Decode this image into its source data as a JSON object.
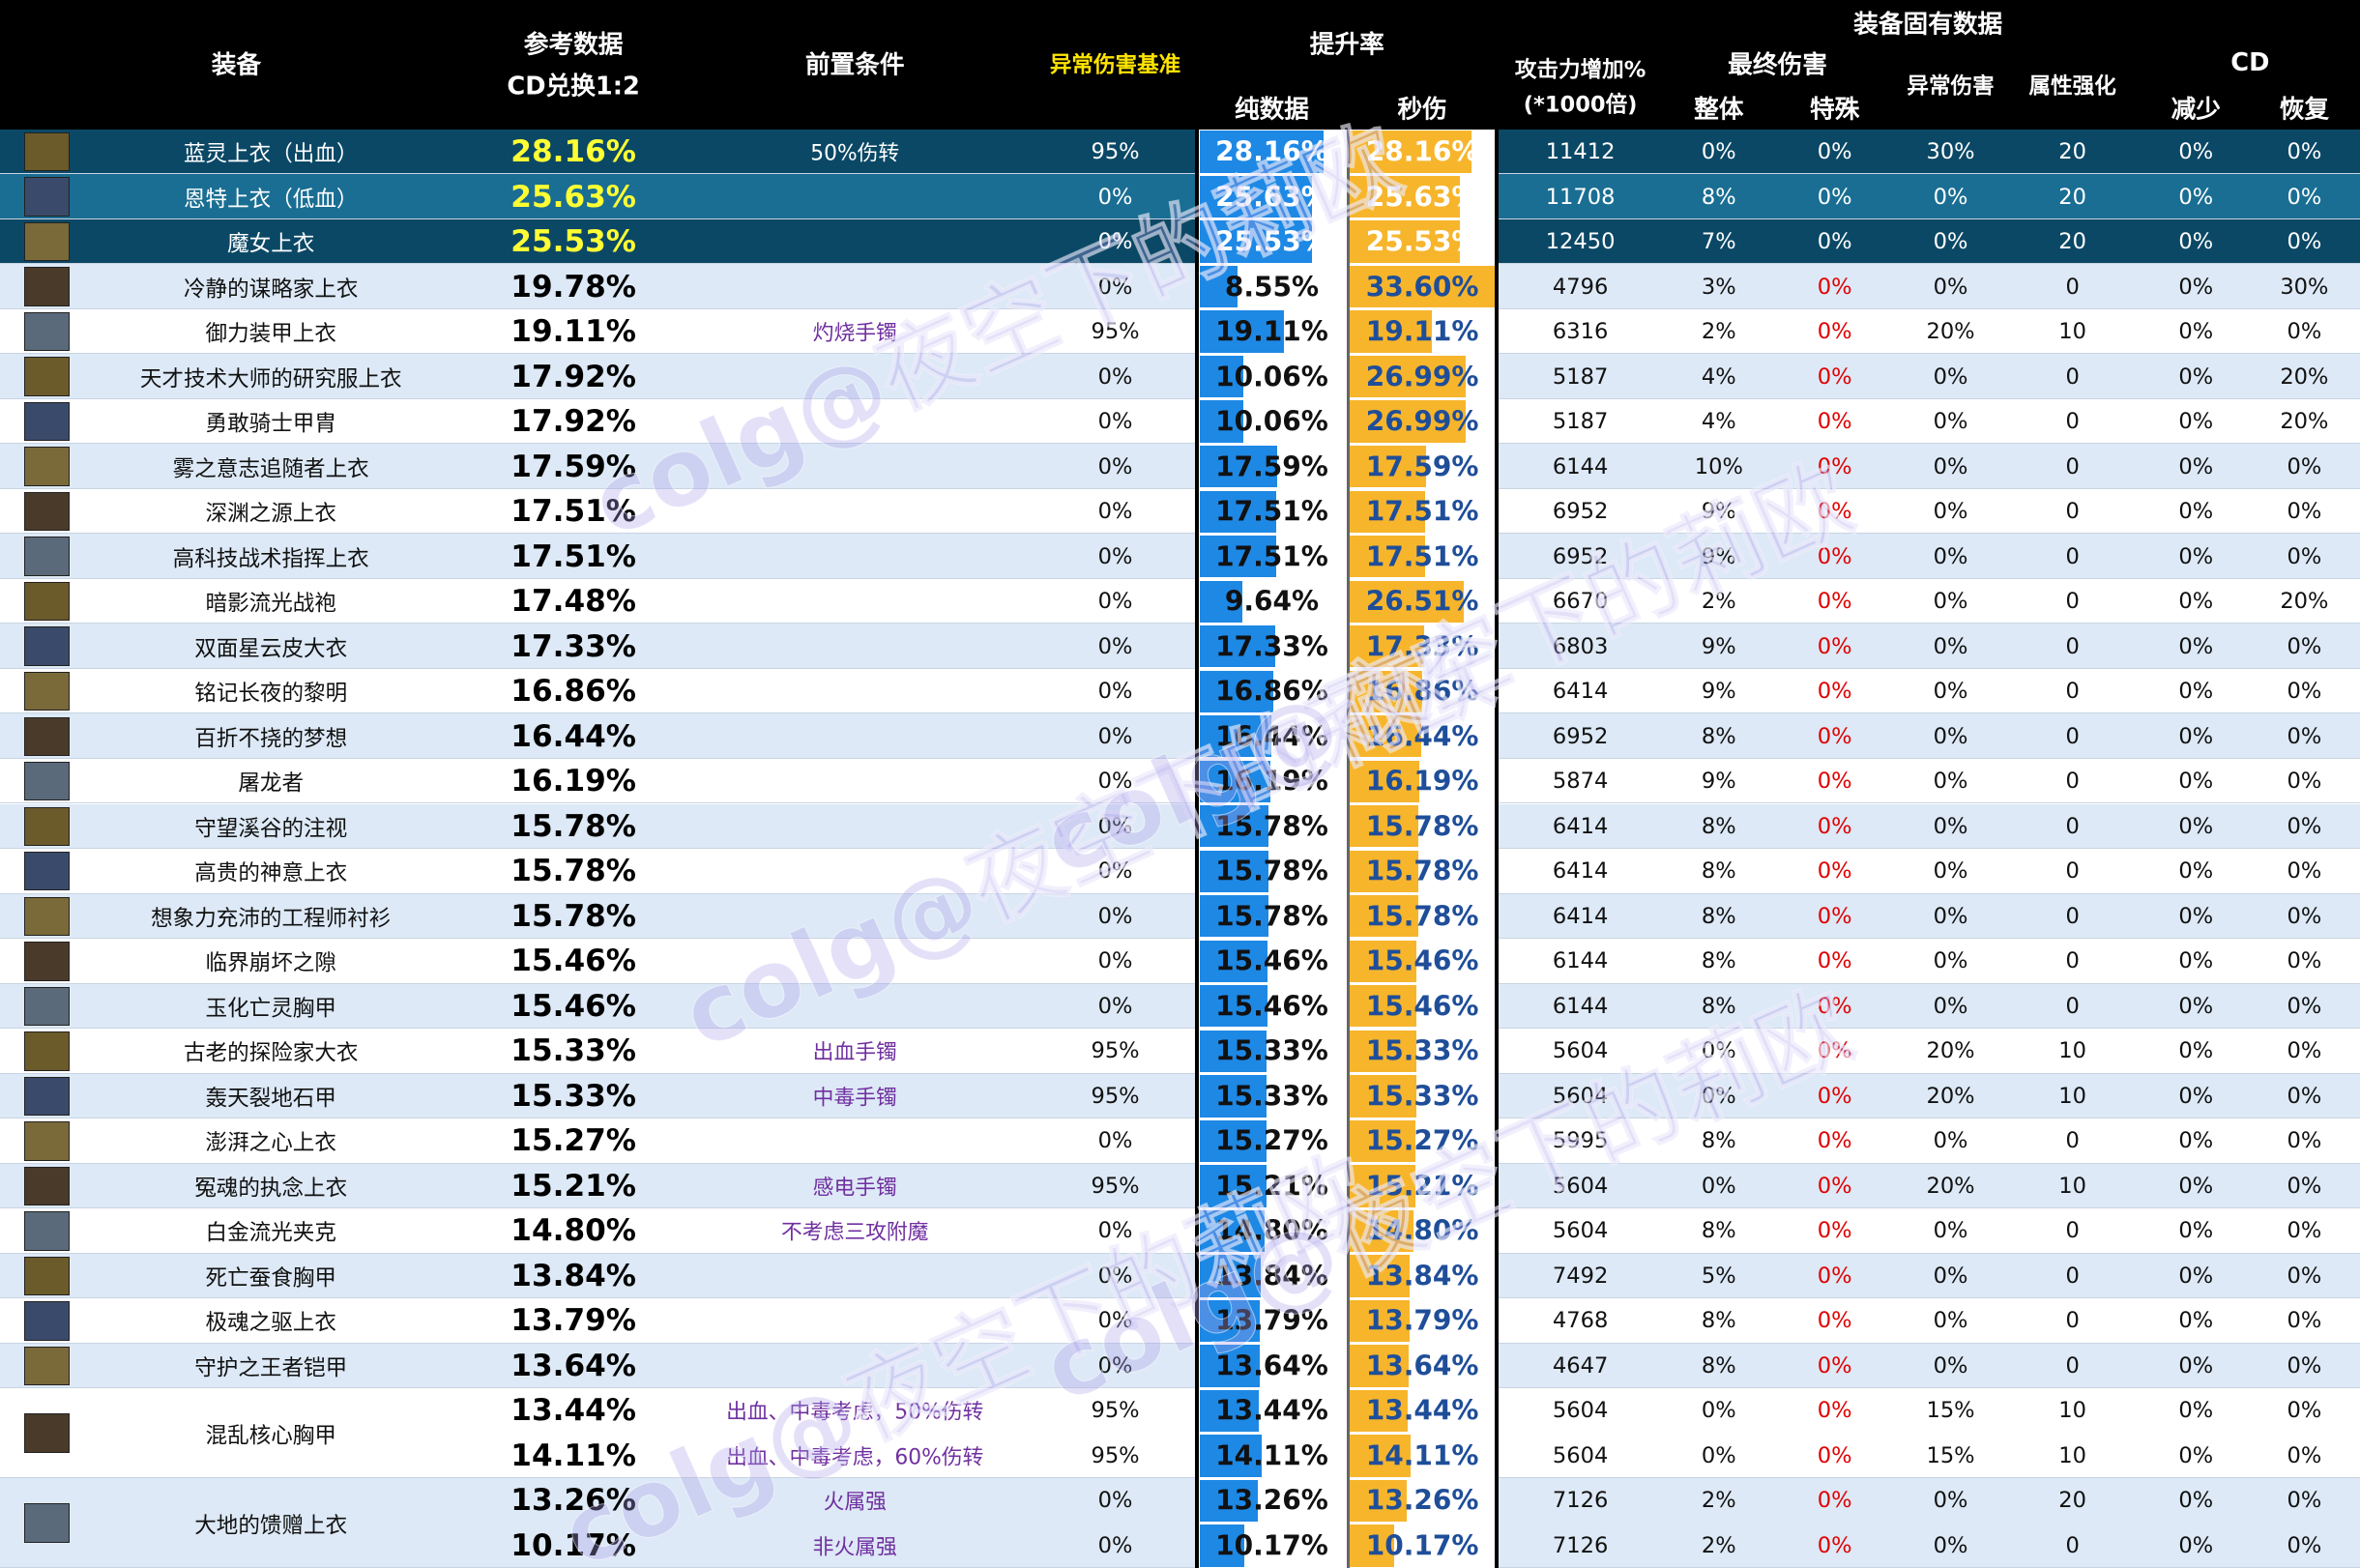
{
  "header": {
    "equip": "装备",
    "ref": [
      "参考数据",
      "CD兑换1:2"
    ],
    "pre": "前置条件",
    "abnormal_base": "异常伤害基准",
    "boost": "提升率",
    "pure": "纯数据",
    "dps": "秒伤",
    "atk": [
      "攻击力增加%",
      "(*1000倍)"
    ],
    "fixed": "装备固有数据",
    "final_dmg": "最终伤害",
    "overall": "整体",
    "special": "特殊",
    "abnormal_dmg": "异常伤害",
    "elem": "属性强化",
    "cd": "CD",
    "cd_reduce": "减少",
    "cd_recover": "恢复"
  },
  "watermark": "colg@夜空下的莉欧",
  "rows": [
    {
      "name": "蓝灵上衣（出血）",
      "entries": [
        [
          "28.16%",
          "50%伤转",
          "95%",
          "28.16%",
          "28.16%",
          "11412",
          "0%",
          "0%",
          "30%",
          "20",
          "0%",
          "0%"
        ]
      ]
    },
    {
      "name": "恩特上衣（低血）",
      "entries": [
        [
          "25.63%",
          "",
          "0%",
          "25.63%",
          "25.63%",
          "11708",
          "8%",
          "0%",
          "0%",
          "20",
          "0%",
          "0%"
        ]
      ]
    },
    {
      "name": "魔女上衣",
      "entries": [
        [
          "25.53%",
          "",
          "0%",
          "25.53%",
          "25.53%",
          "12450",
          "7%",
          "0%",
          "0%",
          "20",
          "0%",
          "0%"
        ]
      ]
    },
    {
      "name": "冷静的谋略家上衣",
      "entries": [
        [
          "19.78%",
          "",
          "0%",
          "8.55%",
          "33.60%",
          "4796",
          "3%",
          "0%",
          "0%",
          "0",
          "0%",
          "30%"
        ]
      ]
    },
    {
      "name": "御力装甲上衣",
      "entries": [
        [
          "19.11%",
          "灼烧手镯",
          "95%",
          "19.11%",
          "19.11%",
          "6316",
          "2%",
          "0%",
          "20%",
          "10",
          "0%",
          "0%"
        ]
      ]
    },
    {
      "name": "天才技术大师的研究服上衣",
      "entries": [
        [
          "17.92%",
          "",
          "0%",
          "10.06%",
          "26.99%",
          "5187",
          "4%",
          "0%",
          "0%",
          "0",
          "0%",
          "20%"
        ]
      ]
    },
    {
      "name": "勇敢骑士甲胄",
      "entries": [
        [
          "17.92%",
          "",
          "0%",
          "10.06%",
          "26.99%",
          "5187",
          "4%",
          "0%",
          "0%",
          "0",
          "0%",
          "20%"
        ]
      ]
    },
    {
      "name": "雾之意志追随者上衣",
      "entries": [
        [
          "17.59%",
          "",
          "0%",
          "17.59%",
          "17.59%",
          "6144",
          "10%",
          "0%",
          "0%",
          "0",
          "0%",
          "0%"
        ]
      ]
    },
    {
      "name": "深渊之源上衣",
      "entries": [
        [
          "17.51%",
          "",
          "0%",
          "17.51%",
          "17.51%",
          "6952",
          "9%",
          "0%",
          "0%",
          "0",
          "0%",
          "0%"
        ]
      ]
    },
    {
      "name": "高科技战术指挥上衣",
      "entries": [
        [
          "17.51%",
          "",
          "0%",
          "17.51%",
          "17.51%",
          "6952",
          "9%",
          "0%",
          "0%",
          "0",
          "0%",
          "0%"
        ]
      ]
    },
    {
      "name": "暗影流光战袍",
      "entries": [
        [
          "17.48%",
          "",
          "0%",
          "9.64%",
          "26.51%",
          "6670",
          "2%",
          "0%",
          "0%",
          "0",
          "0%",
          "20%"
        ]
      ]
    },
    {
      "name": "双面星云皮大衣",
      "entries": [
        [
          "17.33%",
          "",
          "0%",
          "17.33%",
          "17.33%",
          "6803",
          "9%",
          "0%",
          "0%",
          "0",
          "0%",
          "0%"
        ]
      ]
    },
    {
      "name": "铭记长夜的黎明",
      "entries": [
        [
          "16.86%",
          "",
          "0%",
          "16.86%",
          "16.86%",
          "6414",
          "9%",
          "0%",
          "0%",
          "0",
          "0%",
          "0%"
        ]
      ]
    },
    {
      "name": "百折不挠的梦想",
      "entries": [
        [
          "16.44%",
          "",
          "0%",
          "16.44%",
          "16.44%",
          "6952",
          "8%",
          "0%",
          "0%",
          "0",
          "0%",
          "0%"
        ]
      ]
    },
    {
      "name": "屠龙者",
      "entries": [
        [
          "16.19%",
          "",
          "0%",
          "16.19%",
          "16.19%",
          "5874",
          "9%",
          "0%",
          "0%",
          "0",
          "0%",
          "0%"
        ]
      ]
    },
    {
      "name": "守望溪谷的注视",
      "entries": [
        [
          "15.78%",
          "",
          "0%",
          "15.78%",
          "15.78%",
          "6414",
          "8%",
          "0%",
          "0%",
          "0",
          "0%",
          "0%"
        ]
      ]
    },
    {
      "name": "高贵的神意上衣",
      "entries": [
        [
          "15.78%",
          "",
          "0%",
          "15.78%",
          "15.78%",
          "6414",
          "8%",
          "0%",
          "0%",
          "0",
          "0%",
          "0%"
        ]
      ]
    },
    {
      "name": "想象力充沛的工程师衬衫",
      "entries": [
        [
          "15.78%",
          "",
          "0%",
          "15.78%",
          "15.78%",
          "6414",
          "8%",
          "0%",
          "0%",
          "0",
          "0%",
          "0%"
        ]
      ]
    },
    {
      "name": "临界崩坏之隙",
      "entries": [
        [
          "15.46%",
          "",
          "0%",
          "15.46%",
          "15.46%",
          "6144",
          "8%",
          "0%",
          "0%",
          "0",
          "0%",
          "0%"
        ]
      ]
    },
    {
      "name": "玉化亡灵胸甲",
      "entries": [
        [
          "15.46%",
          "",
          "0%",
          "15.46%",
          "15.46%",
          "6144",
          "8%",
          "0%",
          "0%",
          "0",
          "0%",
          "0%"
        ]
      ]
    },
    {
      "name": "古老的探险家大衣",
      "entries": [
        [
          "15.33%",
          "出血手镯",
          "95%",
          "15.33%",
          "15.33%",
          "5604",
          "0%",
          "0%",
          "20%",
          "10",
          "0%",
          "0%"
        ]
      ]
    },
    {
      "name": "轰天裂地石甲",
      "entries": [
        [
          "15.33%",
          "中毒手镯",
          "95%",
          "15.33%",
          "15.33%",
          "5604",
          "0%",
          "0%",
          "20%",
          "10",
          "0%",
          "0%"
        ]
      ]
    },
    {
      "name": "澎湃之心上衣",
      "entries": [
        [
          "15.27%",
          "",
          "0%",
          "15.27%",
          "15.27%",
          "5995",
          "8%",
          "0%",
          "0%",
          "0",
          "0%",
          "0%"
        ]
      ]
    },
    {
      "name": "冤魂的执念上衣",
      "entries": [
        [
          "15.21%",
          "感电手镯",
          "95%",
          "15.21%",
          "15.21%",
          "5604",
          "0%",
          "0%",
          "20%",
          "10",
          "0%",
          "0%"
        ]
      ]
    },
    {
      "name": "白金流光夹克",
      "entries": [
        [
          "14.80%",
          "不考虑三攻附魔",
          "0%",
          "14.80%",
          "14.80%",
          "5604",
          "8%",
          "0%",
          "0%",
          "0",
          "0%",
          "0%"
        ]
      ]
    },
    {
      "name": "死亡蚕食胸甲",
      "entries": [
        [
          "13.84%",
          "",
          "0%",
          "13.84%",
          "13.84%",
          "7492",
          "5%",
          "0%",
          "0%",
          "0",
          "0%",
          "0%"
        ]
      ]
    },
    {
      "name": "极魂之驱上衣",
      "entries": [
        [
          "13.79%",
          "",
          "0%",
          "13.79%",
          "13.79%",
          "4768",
          "8%",
          "0%",
          "0%",
          "0",
          "0%",
          "0%"
        ]
      ]
    },
    {
      "name": "守护之王者铠甲",
      "entries": [
        [
          "13.64%",
          "",
          "0%",
          "13.64%",
          "13.64%",
          "4647",
          "8%",
          "0%",
          "0%",
          "0",
          "0%",
          "0%"
        ]
      ]
    },
    {
      "name": "混乱核心胸甲",
      "entries": [
        [
          "13.44%",
          "出血、中毒考虑，50%伤转",
          "95%",
          "13.44%",
          "13.44%",
          "5604",
          "0%",
          "0%",
          "15%",
          "10",
          "0%",
          "0%"
        ],
        [
          "14.11%",
          "出血、中毒考虑，60%伤转",
          "95%",
          "14.11%",
          "14.11%",
          "5604",
          "0%",
          "0%",
          "15%",
          "10",
          "0%",
          "0%"
        ]
      ]
    },
    {
      "name": "大地的馈赠上衣",
      "entries": [
        [
          "13.26%",
          "火属强",
          "0%",
          "13.26%",
          "13.26%",
          "7126",
          "2%",
          "0%",
          "0%",
          "20",
          "0%",
          "0%"
        ],
        [
          "10.17%",
          "非火属强",
          "0%",
          "10.17%",
          "10.17%",
          "7126",
          "2%",
          "0%",
          "0%",
          "0",
          "0%",
          "0%"
        ]
      ]
    }
  ]
}
